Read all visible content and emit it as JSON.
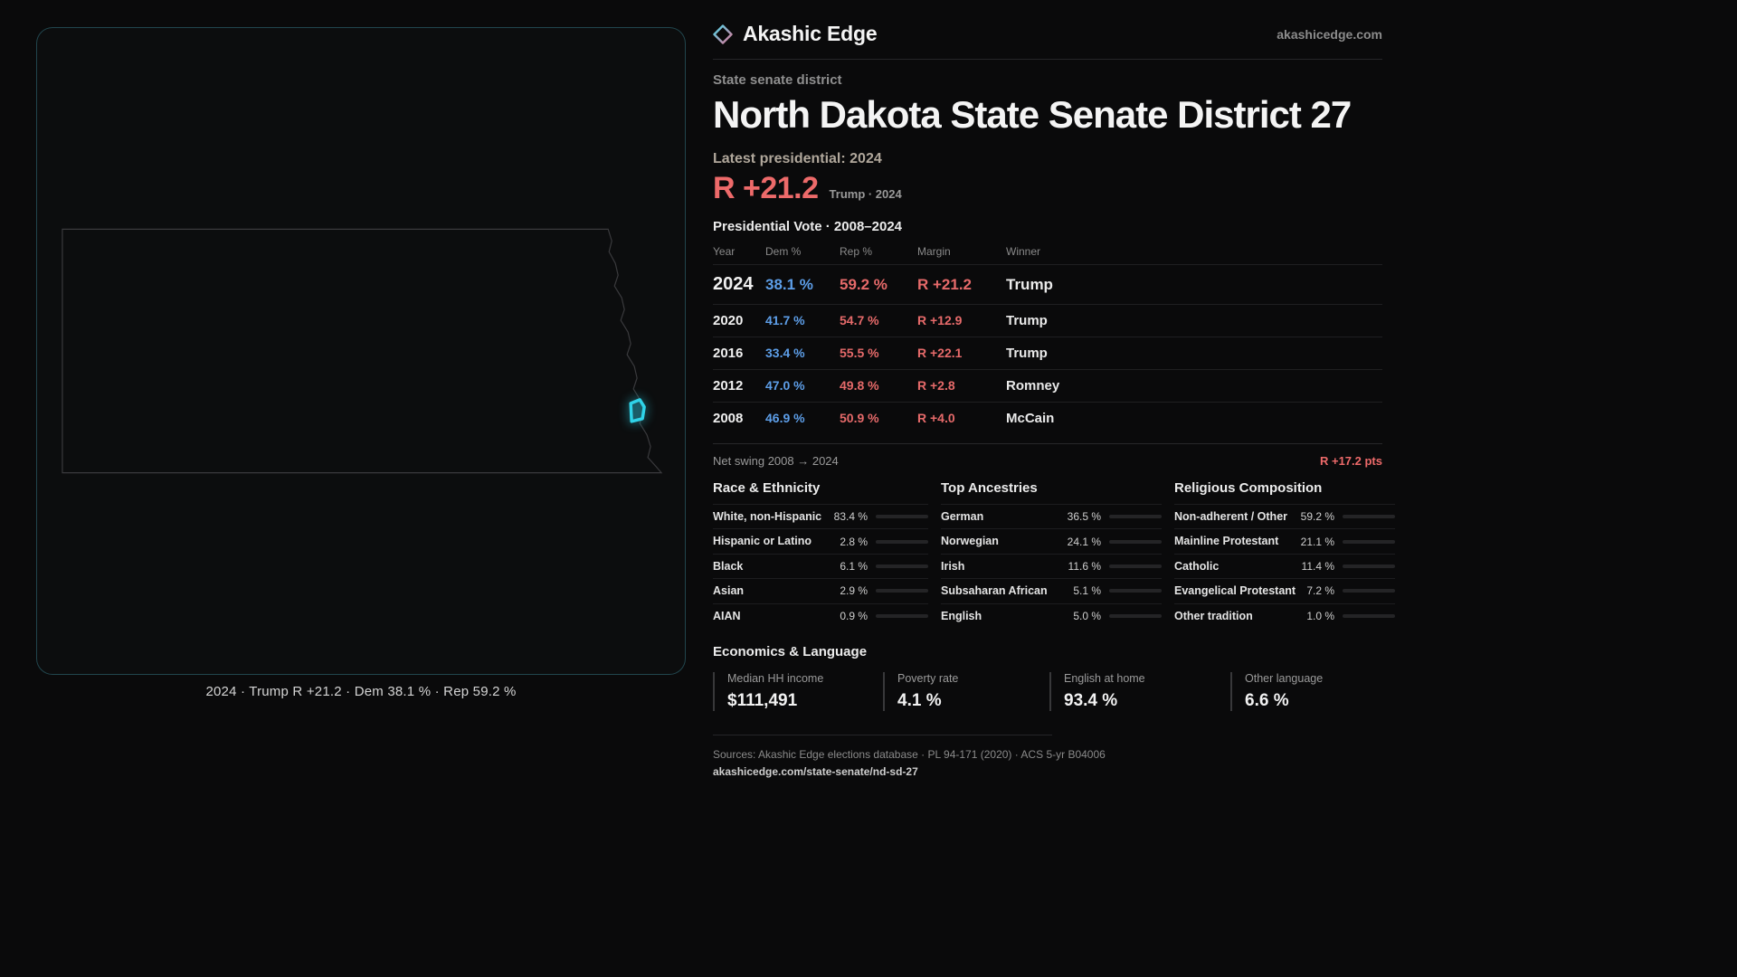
{
  "brand": {
    "name": "Akashic Edge",
    "domain": "akashicedge.com"
  },
  "page": {
    "kicker": "State senate district",
    "title": "North Dakota State Senate District 27",
    "latest_label": "Latest presidential: 2024",
    "headline_margin": "R +21.2",
    "headline_sub": "Trump · 2024"
  },
  "map": {
    "caption": "2024 · Trump R +21.2 · Dem 38.1 % · Rep 59.2 %"
  },
  "colors": {
    "accent_cyan": "#2fd3e8",
    "rep_red": "#ed6a6a",
    "dem_blue": "#5d9ee8"
  },
  "vote_table": {
    "title": "Presidential Vote · 2008–2024",
    "columns": [
      "Year",
      "Dem %",
      "Rep %",
      "Margin",
      "Winner"
    ],
    "rows": [
      {
        "year": "2024",
        "dem": "38.1 %",
        "rep": "59.2 %",
        "margin": "R +21.2",
        "winner": "Trump"
      },
      {
        "year": "2020",
        "dem": "41.7 %",
        "rep": "54.7 %",
        "margin": "R +12.9",
        "winner": "Trump"
      },
      {
        "year": "2016",
        "dem": "33.4 %",
        "rep": "55.5 %",
        "margin": "R +22.1",
        "winner": "Trump"
      },
      {
        "year": "2012",
        "dem": "47.0 %",
        "rep": "49.8 %",
        "margin": "R +2.8",
        "winner": "Romney"
      },
      {
        "year": "2008",
        "dem": "46.9 %",
        "rep": "50.9 %",
        "margin": "R +4.0",
        "winner": "McCain"
      }
    ]
  },
  "swing": {
    "label": "Net swing 2008 → 2024",
    "value": "R +17.2 pts"
  },
  "demographics": {
    "race": {
      "title": "Race & Ethnicity",
      "rows": [
        {
          "label": "White, non-Hispanic",
          "value": "83.4 %",
          "pct": 83.4,
          "color": "#cfcfcf"
        },
        {
          "label": "Hispanic or Latino",
          "value": "2.8 %",
          "pct": 2.8,
          "color": "#e08a4a"
        },
        {
          "label": "Black",
          "value": "6.1 %",
          "pct": 6.1,
          "color": "#8b7ce0"
        },
        {
          "label": "Asian",
          "value": "2.9 %",
          "pct": 2.9,
          "color": "#3fc9a4"
        },
        {
          "label": "AIAN",
          "value": "0.9 %",
          "pct": 0.9,
          "color": "#e0654a"
        }
      ]
    },
    "ancestries": {
      "title": "Top Ancestries",
      "rows": [
        {
          "label": "German",
          "value": "36.5 %",
          "pct": 36.5,
          "color": "#a8a8a8"
        },
        {
          "label": "Norwegian",
          "value": "24.1 %",
          "pct": 24.1,
          "color": "#a8a8a8"
        },
        {
          "label": "Irish",
          "value": "11.6 %",
          "pct": 11.6,
          "color": "#a8a8a8"
        },
        {
          "label": "Subsaharan African",
          "value": "5.1 %",
          "pct": 5.1,
          "color": "#8b7ce0"
        },
        {
          "label": "English",
          "value": "5.0 %",
          "pct": 5.0,
          "color": "#a8a8a8"
        }
      ]
    },
    "religion": {
      "title": "Religious Composition",
      "rows": [
        {
          "label": "Non-adherent / Other",
          "value": "59.2 %",
          "pct": 59.2,
          "color": "#b5b5b5"
        },
        {
          "label": "Mainline Protestant",
          "value": "21.1 %",
          "pct": 21.1,
          "color": "#5d9ee8"
        },
        {
          "label": "Catholic",
          "value": "11.4 %",
          "pct": 11.4,
          "color": "#e0b84a"
        },
        {
          "label": "Evangelical Protestant",
          "value": "7.2 %",
          "pct": 7.2,
          "color": "#e0788a"
        },
        {
          "label": "Other tradition",
          "value": "1.0 %",
          "pct": 1.0,
          "color": "#9a9a9a"
        }
      ]
    }
  },
  "economics": {
    "title": "Economics & Language",
    "stats": [
      {
        "label": "Median HH income",
        "value": "$111,491"
      },
      {
        "label": "Poverty rate",
        "value": "4.1 %"
      },
      {
        "label": "English at home",
        "value": "93.4 %"
      },
      {
        "label": "Other language",
        "value": "6.6 %"
      }
    ]
  },
  "footer": {
    "sources": "Sources: Akashic Edge elections database · PL 94-171 (2020) · ACS 5-yr B04006",
    "permalink": "akashicedge.com/state-senate/nd-sd-27"
  }
}
